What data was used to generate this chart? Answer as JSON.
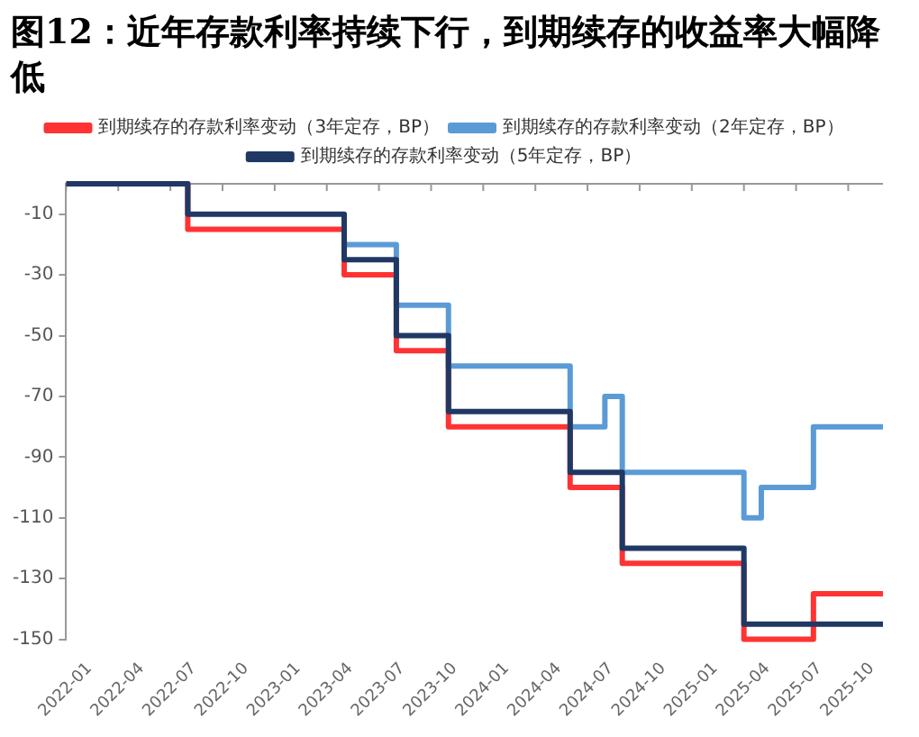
{
  "chart_data": {
    "type": "step",
    "title": "图12：近年存款利率持续下行，到期续存的收益率大幅降低",
    "categories": [
      "2022-01",
      null,
      null,
      "2022-04",
      null,
      null,
      "2022-07",
      null,
      null,
      "2022-10",
      null,
      null,
      "2023-01",
      null,
      null,
      "2023-04",
      null,
      null,
      "2023-07",
      null,
      null,
      "2023-10",
      null,
      null,
      "2024-01",
      null,
      null,
      "2024-04",
      null,
      null,
      "2024-07",
      null,
      null,
      "2024-10",
      null,
      null,
      "2025-01",
      null,
      null,
      "2025-04",
      null,
      null,
      "2025-07",
      null,
      null,
      "2025-10",
      null,
      null
    ],
    "series": [
      {
        "name": "到期续存的存款利率变动（3年定存，BP）",
        "color": "#ff3333",
        "values": [
          null,
          null,
          null,
          null,
          null,
          null,
          0,
          0,
          -15,
          -15,
          -15,
          -15,
          -15,
          -15,
          -15,
          -15,
          -15,
          -30,
          -30,
          -30,
          -55,
          -55,
          -55,
          -80,
          -80,
          -80,
          -80,
          -80,
          -80,
          -80,
          -100,
          -100,
          -100,
          -125,
          -125,
          -125,
          -125,
          -125,
          -125,
          -125,
          -150,
          -150,
          -150,
          -150,
          -135,
          -135,
          -135,
          -135
        ]
      },
      {
        "name": "到期续存的存款利率变动（2年定存，BP）",
        "color": "#5b9bd5",
        "values": [
          null,
          null,
          null,
          null,
          null,
          null,
          null,
          null,
          null,
          null,
          null,
          null,
          null,
          null,
          null,
          null,
          -10,
          -20,
          -20,
          -20,
          -40,
          -40,
          -40,
          -60,
          -60,
          -60,
          -60,
          -60,
          -60,
          -60,
          -80,
          -80,
          -70,
          -95,
          -95,
          -95,
          -95,
          -95,
          -95,
          -95,
          -110,
          -100,
          -100,
          -100,
          -80,
          -80,
          -80,
          -80
        ]
      },
      {
        "name": "到期续存的存款利率变动（5年定存，BP）",
        "color": "#203864",
        "values": [
          0,
          0,
          0,
          0,
          0,
          0,
          0,
          0,
          -10,
          -10,
          -10,
          -10,
          -10,
          -10,
          -10,
          -10,
          -10,
          -25,
          -25,
          -25,
          -50,
          -50,
          -50,
          -75,
          -75,
          -75,
          -75,
          -75,
          -75,
          -75,
          -95,
          -95,
          -95,
          -120,
          -120,
          -120,
          -120,
          -120,
          -120,
          -120,
          -145,
          -145,
          -145,
          -145,
          -145,
          -145,
          -145,
          -145
        ]
      }
    ],
    "ylim": [
      -150,
      0
    ],
    "yticks": [
      -10,
      -30,
      -50,
      -70,
      -90,
      -110,
      -130,
      -150
    ],
    "grid": false,
    "legend": "top",
    "marker": "none",
    "line_style": "solid"
  }
}
